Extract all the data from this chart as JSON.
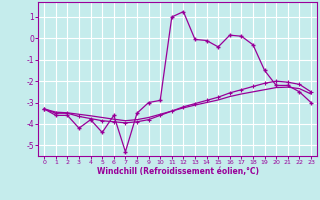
{
  "title": "",
  "xlabel": "Windchill (Refroidissement éolien,°C)",
  "ylabel": "",
  "background_color": "#c5ecec",
  "grid_color": "#ffffff",
  "line_color": "#990099",
  "xlim": [
    -0.5,
    23.5
  ],
  "ylim": [
    -5.5,
    1.7
  ],
  "yticks": [
    1,
    0,
    -1,
    -2,
    -3,
    -4,
    -5
  ],
  "xticks": [
    0,
    1,
    2,
    3,
    4,
    5,
    6,
    7,
    8,
    9,
    10,
    11,
    12,
    13,
    14,
    15,
    16,
    17,
    18,
    19,
    20,
    21,
    22,
    23
  ],
  "series1_x": [
    0,
    1,
    2,
    3,
    4,
    5,
    6,
    7,
    8,
    9,
    10,
    11,
    12,
    13,
    14,
    15,
    16,
    17,
    18,
    19,
    20,
    21,
    22,
    23
  ],
  "series1_y": [
    -3.3,
    -3.6,
    -3.6,
    -4.2,
    -3.8,
    -4.4,
    -3.6,
    -5.3,
    -3.5,
    -3.0,
    -2.9,
    1.0,
    1.25,
    -0.05,
    -0.1,
    -0.4,
    0.15,
    0.1,
    -0.3,
    -1.5,
    -2.2,
    -2.2,
    -2.5,
    -3.0
  ],
  "series2_x": [
    0,
    1,
    2,
    3,
    4,
    5,
    6,
    7,
    8,
    9,
    10,
    11,
    12,
    13,
    14,
    15,
    16,
    17,
    18,
    19,
    20,
    21,
    22,
    23
  ],
  "series2_y": [
    -3.3,
    -3.5,
    -3.5,
    -3.65,
    -3.75,
    -3.85,
    -3.9,
    -3.95,
    -3.9,
    -3.8,
    -3.6,
    -3.4,
    -3.2,
    -3.05,
    -2.9,
    -2.75,
    -2.55,
    -2.4,
    -2.25,
    -2.1,
    -2.0,
    -2.05,
    -2.15,
    -2.5
  ],
  "series3_x": [
    0,
    1,
    2,
    3,
    4,
    5,
    6,
    7,
    8,
    9,
    10,
    11,
    12,
    13,
    14,
    15,
    16,
    17,
    18,
    19,
    20,
    21,
    22,
    23
  ],
  "series3_y": [
    -3.3,
    -3.45,
    -3.48,
    -3.55,
    -3.62,
    -3.7,
    -3.78,
    -3.85,
    -3.8,
    -3.7,
    -3.55,
    -3.4,
    -3.25,
    -3.12,
    -3.0,
    -2.88,
    -2.72,
    -2.6,
    -2.5,
    -2.4,
    -2.3,
    -2.28,
    -2.35,
    -2.6
  ]
}
